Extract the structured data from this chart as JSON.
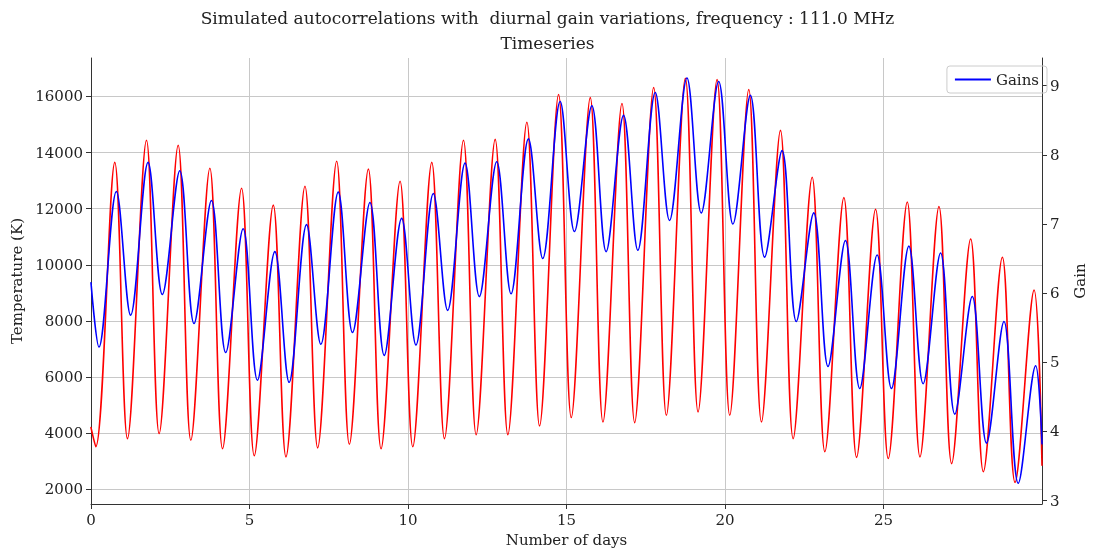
{
  "chart_data": {
    "type": "line",
    "title": "Simulated autocorrelations with  diurnal gain variations, frequency : 111.0 MHz",
    "subtitle": "Timeseries",
    "xlabel": "Number of days",
    "ylabel": "Temperature (K)",
    "y2label": "Gain",
    "xlim": [
      0,
      30
    ],
    "xticks": [
      0,
      5,
      10,
      15,
      20,
      25
    ],
    "ylim": [
      1480,
      17370
    ],
    "yticks": [
      2000,
      4000,
      6000,
      8000,
      10000,
      12000,
      14000,
      16000
    ],
    "y2lim": [
      2.95,
      9.4
    ],
    "y2ticks": [
      3,
      4,
      5,
      6,
      7,
      8,
      9
    ],
    "grid": true,
    "legend": "top right",
    "marker": "none",
    "line_style": "solid",
    "series": [
      {
        "color": "#ff0000",
        "x": [
          0,
          0.15,
          0.75,
          1.15,
          1.75,
          2.15,
          2.75,
          3.15,
          3.75,
          4.15,
          4.75,
          5.15,
          5.75,
          6.15,
          6.75,
          7.15,
          7.75,
          8.15,
          8.75,
          9.15,
          9.75,
          10.15,
          10.75,
          11.15,
          11.75,
          12.15,
          12.75,
          13.15,
          13.75,
          14.15,
          14.75,
          15.15,
          15.75,
          16.15,
          16.75,
          17.15,
          17.75,
          18.15,
          18.75,
          19.15,
          19.75,
          20.15,
          20.75,
          21.15,
          21.75,
          22.15,
          22.75,
          23.15,
          23.75,
          24.15,
          24.75,
          25.15,
          25.75,
          26.15,
          26.75,
          27.15,
          27.75,
          28.15,
          28.75,
          29.15,
          29.75,
          30
        ],
        "values": [
          4200,
          3520,
          13650,
          3810,
          14440,
          3990,
          14260,
          3750,
          13440,
          3450,
          12730,
          3200,
          12130,
          3160,
          12800,
          3480,
          13690,
          3610,
          13410,
          3450,
          12980,
          3520,
          13650,
          3810,
          14440,
          3950,
          14470,
          3950,
          15080,
          4260,
          16070,
          4560,
          15960,
          4400,
          15750,
          4380,
          16320,
          4640,
          16650,
          4760,
          16600,
          4640,
          16250,
          4400,
          14790,
          3810,
          13120,
          3340,
          12400,
          3140,
          11980,
          3100,
          12240,
          3160,
          12080,
          2920,
          10920,
          2630,
          10270,
          2250,
          9100,
          2860
        ]
      },
      {
        "name": "Gains",
        "color": "#0000ff",
        "axis": "y2",
        "x": [
          0,
          0.25,
          0.8,
          1.25,
          1.8,
          2.25,
          2.8,
          3.25,
          3.8,
          4.25,
          4.8,
          5.25,
          5.8,
          6.25,
          6.8,
          7.25,
          7.8,
          8.25,
          8.8,
          9.25,
          9.8,
          10.25,
          10.8,
          11.25,
          11.8,
          12.25,
          12.8,
          13.25,
          13.8,
          14.25,
          14.8,
          15.25,
          15.8,
          16.25,
          16.8,
          17.25,
          17.8,
          18.25,
          18.8,
          19.25,
          19.8,
          20.25,
          20.8,
          21.25,
          21.8,
          22.25,
          22.8,
          23.25,
          23.8,
          24.25,
          24.8,
          25.25,
          25.8,
          26.25,
          26.8,
          27.25,
          27.8,
          28.25,
          28.8,
          29.25,
          29.8,
          30
        ],
        "values": [
          6.15,
          5.22,
          7.47,
          5.68,
          7.89,
          5.98,
          7.77,
          5.56,
          7.34,
          5.14,
          6.93,
          4.74,
          6.6,
          4.71,
          6.99,
          5.26,
          7.46,
          5.43,
          7.31,
          5.1,
          7.08,
          5.25,
          7.44,
          5.75,
          7.88,
          5.95,
          7.9,
          5.99,
          8.23,
          6.5,
          8.77,
          6.89,
          8.71,
          6.6,
          8.57,
          6.62,
          8.9,
          7.05,
          9.11,
          7.16,
          9.06,
          7.0,
          8.86,
          6.52,
          8.06,
          5.59,
          7.16,
          4.94,
          6.76,
          4.62,
          6.55,
          4.62,
          6.68,
          4.69,
          6.58,
          4.25,
          5.95,
          3.83,
          5.59,
          3.25,
          4.95,
          3.82
        ]
      }
    ]
  }
}
